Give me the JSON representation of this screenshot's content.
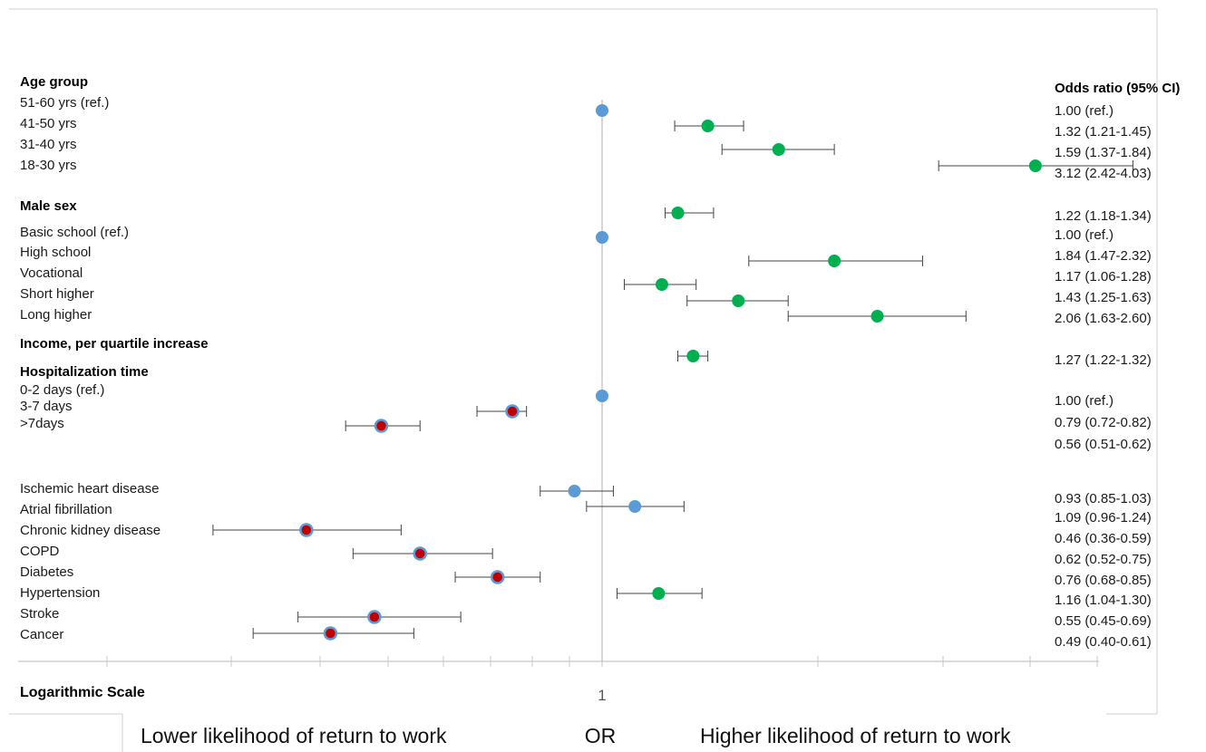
{
  "chart_data": {
    "type": "forest",
    "scale": "log",
    "xlabel": "OR",
    "x_ticks": [
      1
    ],
    "x_tick_labels": [
      "1"
    ],
    "reference_value": 1,
    "or_header": "Odds ratio (95% CI)",
    "scale_label": "Logarithmic Scale",
    "footer": {
      "left": "Lower likelihood of return to work",
      "center": "OR",
      "right": "Higher likelihood of return to work"
    },
    "colors": {
      "ref": "#5b9bd5",
      "higher": "#00b050",
      "lower_fill": "#c00000",
      "lower_ring": "#5b9bd5",
      "ns": "#5b9bd5"
    },
    "groups": [
      {
        "label": "Age group"
      },
      {
        "label": "Male sex"
      },
      {
        "label": "Income, per quartile increase"
      },
      {
        "label": "Hospitalization time"
      }
    ],
    "rows": [
      {
        "label": "51-60  yrs (ref.)",
        "or": 1.0,
        "lo": null,
        "hi": null,
        "text": "1.00 (ref.)",
        "kind": "ref"
      },
      {
        "label": "41-50 yrs",
        "or": 1.32,
        "lo": 1.21,
        "hi": 1.45,
        "text": "1.32 (1.21-1.45)",
        "kind": "higher"
      },
      {
        "label": "31-40 yrs",
        "or": 1.59,
        "lo": 1.37,
        "hi": 1.84,
        "text": "1.59 (1.37-1.84)",
        "kind": "higher"
      },
      {
        "label": "18-30 yrs",
        "or": 3.12,
        "lo": 2.42,
        "hi": 4.03,
        "text": "3.12 (2.42-4.03)",
        "kind": "higher"
      },
      {
        "label": "",
        "or": 1.22,
        "lo": 1.18,
        "hi": 1.34,
        "text": "1.22 (1.18-1.34)",
        "kind": "higher"
      },
      {
        "label": "Basic school (ref.)",
        "or": 1.0,
        "lo": null,
        "hi": null,
        "text": "1.00 (ref.)",
        "kind": "ref"
      },
      {
        "label": "High school",
        "or": 1.84,
        "lo": 1.47,
        "hi": 2.32,
        "text": "1.84 (1.47-2.32)",
        "kind": "higher"
      },
      {
        "label": "Vocational",
        "or": 1.17,
        "lo": 1.06,
        "hi": 1.28,
        "text": "1.17 (1.06-1.28)",
        "kind": "higher"
      },
      {
        "label": "Short higher",
        "or": 1.43,
        "lo": 1.25,
        "hi": 1.63,
        "text": "1.43 (1.25-1.63)",
        "kind": "higher"
      },
      {
        "label": "Long higher",
        "or": 2.06,
        "lo": 1.63,
        "hi": 2.6,
        "text": "2.06 (1.63-2.60)",
        "kind": "higher"
      },
      {
        "label": "",
        "or": 1.27,
        "lo": 1.22,
        "hi": 1.32,
        "text": "1.27 (1.22-1.32)",
        "kind": "higher"
      },
      {
        "label": "0-2 days  (ref.)",
        "or": 1.0,
        "lo": null,
        "hi": null,
        "text": "1.00 (ref.)",
        "kind": "ref"
      },
      {
        "label": "3-7 days",
        "or": 0.79,
        "lo": 0.72,
        "hi": 0.82,
        "text": "0.79 (0.72-0.82)",
        "kind": "lower"
      },
      {
        "label": ">7days",
        "or": 0.56,
        "lo": 0.51,
        "hi": 0.62,
        "text": "0.56 (0.51-0.62)",
        "kind": "lower"
      },
      {
        "label": "Ischemic heart disease",
        "or": 0.93,
        "lo": 0.85,
        "hi": 1.03,
        "text": "0.93 (0.85-1.03)",
        "kind": "ns"
      },
      {
        "label": "Atrial fibrillation",
        "or": 1.09,
        "lo": 0.96,
        "hi": 1.24,
        "text": "1.09 (0.96-1.24)",
        "kind": "ns"
      },
      {
        "label": "Chronic kidney disease",
        "or": 0.46,
        "lo": 0.36,
        "hi": 0.59,
        "text": "0.46 (0.36-0.59)",
        "kind": "lower"
      },
      {
        "label": "COPD",
        "or": 0.62,
        "lo": 0.52,
        "hi": 0.75,
        "text": "0.62 (0.52-0.75)",
        "kind": "lower"
      },
      {
        "label": "Diabetes",
        "or": 0.76,
        "lo": 0.68,
        "hi": 0.85,
        "text": "0.76 (0.68-0.85)",
        "kind": "lower"
      },
      {
        "label": "Hypertension",
        "or": 1.16,
        "lo": 1.04,
        "hi": 1.3,
        "text": "1.16 (1.04-1.30)",
        "kind": "higher"
      },
      {
        "label": "Stroke",
        "or": 0.55,
        "lo": 0.45,
        "hi": 0.69,
        "text": "0.55 (0.45-0.69)",
        "kind": "lower"
      },
      {
        "label": "Cancer",
        "or": 0.49,
        "lo": 0.4,
        "hi": 0.61,
        "text": "0.49 (0.40-0.61)",
        "kind": "lower"
      }
    ]
  }
}
